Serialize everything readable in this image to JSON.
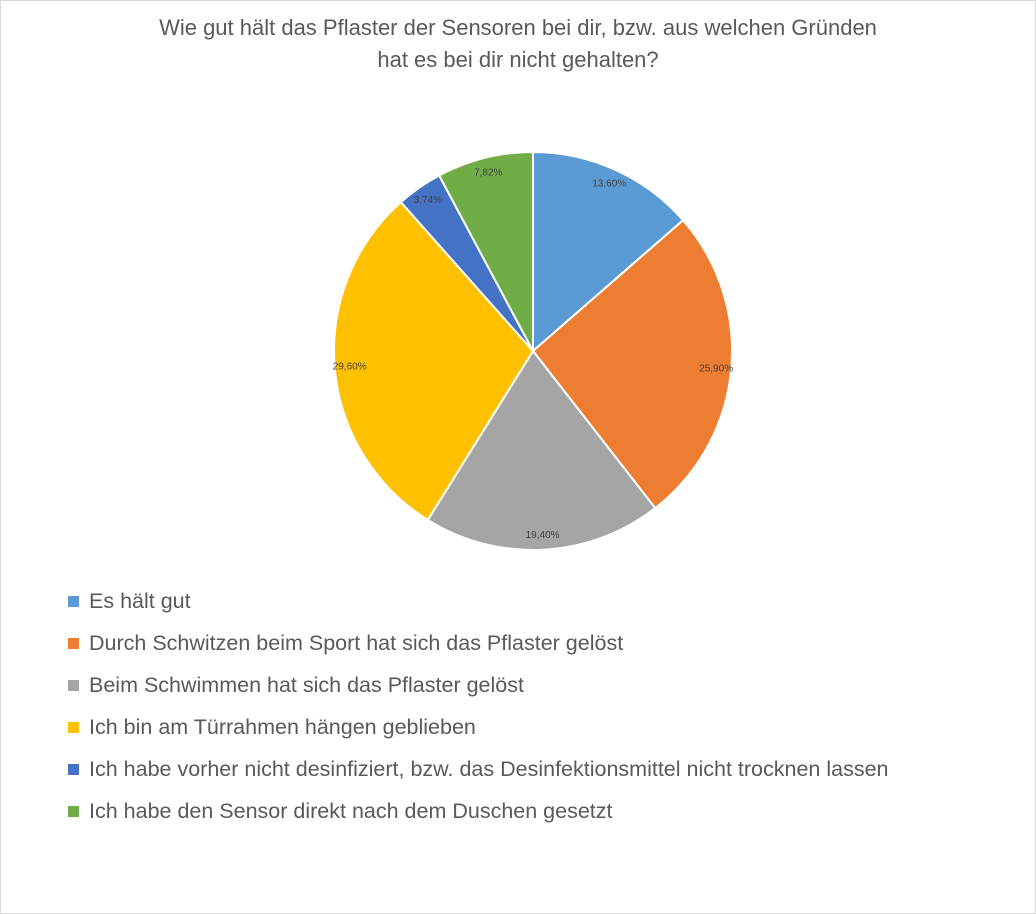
{
  "chart_data": {
    "type": "pie",
    "title": [
      "Wie gut hält das Pflaster der Sensoren bei dir, bzw. aus welchen Gründen",
      "hat es bei dir nicht gehalten?"
    ],
    "legend_position": "bottom",
    "slices": [
      {
        "label": "Es hält gut",
        "value": 13.6,
        "display": "13,60%",
        "color": "#5B9BD5"
      },
      {
        "label": "Durch Schwitzen beim Sport hat sich das Pflaster gelöst",
        "value": 25.9,
        "display": "25,90%",
        "color": "#ED7D31"
      },
      {
        "label": "Beim Schwimmen hat sich das Pflaster gelöst",
        "value": 19.4,
        "display": "19,40%",
        "color": "#A5A5A5"
      },
      {
        "label": "Ich bin am Türrahmen hängen geblieben",
        "value": 29.6,
        "display": "29,60%",
        "color": "#FFC000"
      },
      {
        "label": "Ich habe vorher nicht desinfiziert, bzw. das Desinfektionsmittel nicht trocknen lassen",
        "value": 3.74,
        "display": "3,74%",
        "color": "#4472C4"
      },
      {
        "label": "Ich habe den Sensor direkt nach dem Duschen gesetzt",
        "value": 7.82,
        "display": "7,82%",
        "color": "#70AD47"
      }
    ]
  }
}
